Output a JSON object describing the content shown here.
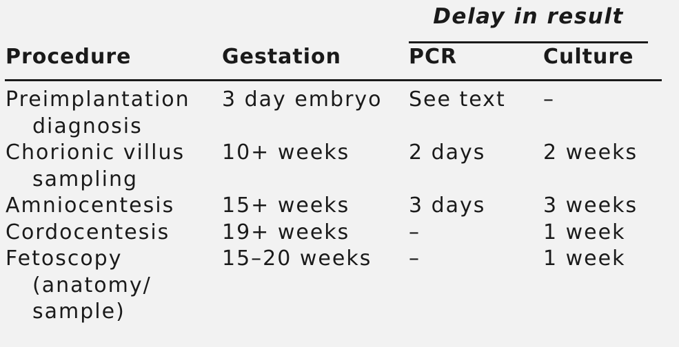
{
  "colors": {
    "background": "#f2f2f2",
    "text": "#1a1a1a",
    "rule": "#1a1a1a"
  },
  "table": {
    "spanner_label": "Delay in result",
    "columns": [
      "Procedure",
      "Gestation",
      "PCR",
      "Culture"
    ],
    "rows": [
      {
        "procedure": [
          "Preimplantation",
          "diagnosis"
        ],
        "gestation": "3 day embryo",
        "pcr": "See text",
        "culture": "–"
      },
      {
        "procedure": [
          "Chorionic villus",
          "sampling"
        ],
        "gestation": "10+ weeks",
        "pcr": "2 days",
        "culture": "2 weeks"
      },
      {
        "procedure": [
          "Amniocentesis"
        ],
        "gestation": "15+ weeks",
        "pcr": "3 days",
        "culture": "3 weeks"
      },
      {
        "procedure": [
          "Cordocentesis"
        ],
        "gestation": "19+ weeks",
        "pcr": "–",
        "culture": "1 week"
      },
      {
        "procedure": [
          "Fetoscopy",
          "(anatomy/",
          "sample)"
        ],
        "gestation": "15–20 weeks",
        "pcr": "–",
        "culture": "1 week"
      }
    ]
  }
}
